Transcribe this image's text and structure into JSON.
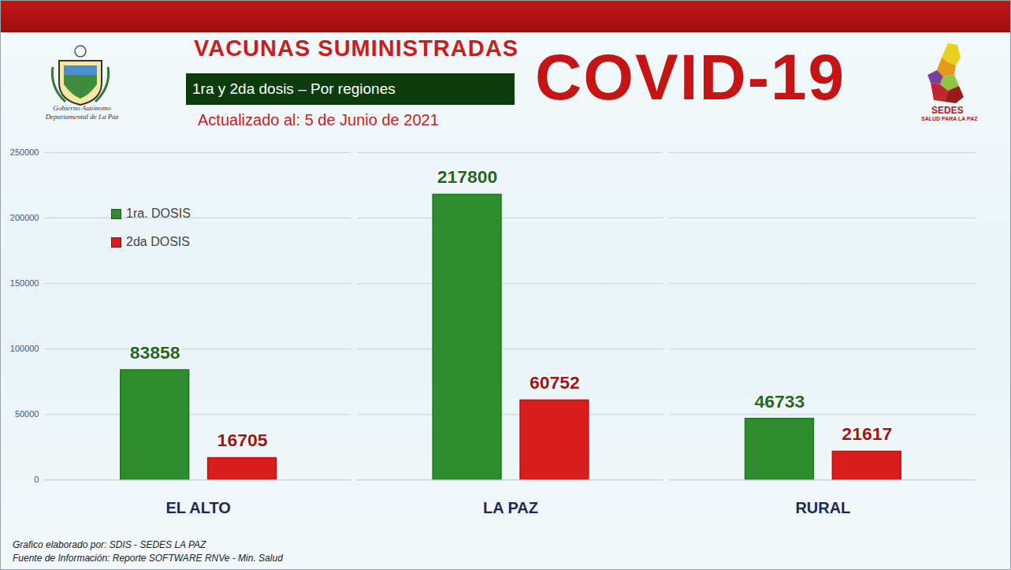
{
  "chart_data": {
    "type": "bar",
    "title": "VACUNAS SUMINISTRADAS",
    "subtitle": "1ra y 2da dosis – Por regiones",
    "annotations": [
      "COVID-19",
      "Actualizado al: 5 de Junio de 2021",
      "Gobierno Autónomo Departamental de La Paz",
      "SEDES",
      "SALUD PARA LA PAZ",
      "Grafico elaborado por: SDIS - SEDES LA PAZ",
      "Fuente de Información: Reporte SOFTWARE RNVe - Min. Salud"
    ],
    "categories": [
      "EL ALTO",
      "LA PAZ",
      "RURAL"
    ],
    "series": [
      {
        "name": "1ra. DOSIS",
        "color": "#2e8b2e",
        "values": [
          83858,
          217800,
          46733
        ]
      },
      {
        "name": "2da DOSIS",
        "color": "#d91c1c",
        "values": [
          16705,
          60752,
          21617
        ]
      }
    ],
    "ylim": [
      0,
      250000
    ],
    "yticks": [
      0,
      50000,
      100000,
      150000,
      200000,
      250000
    ],
    "grid": true,
    "data_labels": true,
    "legend": "upper left"
  }
}
